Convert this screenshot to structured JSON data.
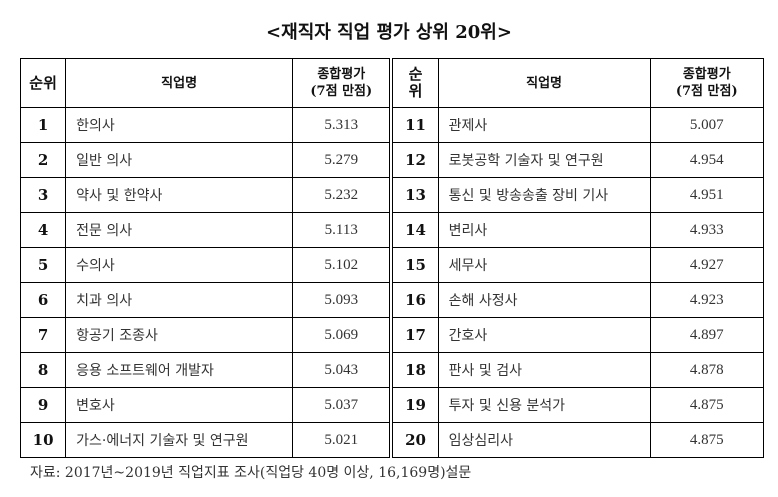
{
  "title": "<재직자 직업 평가 상위 20위>",
  "headers": {
    "rank": "순위",
    "rank_short": "순\n위",
    "job": "직업명",
    "score_line1": "종합평가",
    "score_line2": "(7점 만점)"
  },
  "rows": [
    {
      "l": {
        "rank": "1",
        "job": "한의사",
        "score": "5.313"
      },
      "r": {
        "rank": "11",
        "job": "관제사",
        "score": "5.007"
      }
    },
    {
      "l": {
        "rank": "2",
        "job": "일반 의사",
        "score": "5.279"
      },
      "r": {
        "rank": "12",
        "job": "로봇공학 기술자 및 연구원",
        "score": "4.954"
      }
    },
    {
      "l": {
        "rank": "3",
        "job": "약사 및 한약사",
        "score": "5.232"
      },
      "r": {
        "rank": "13",
        "job": "통신 및 방송송출 장비 기사",
        "score": "4.951"
      }
    },
    {
      "l": {
        "rank": "4",
        "job": "전문 의사",
        "score": "5.113"
      },
      "r": {
        "rank": "14",
        "job": "변리사",
        "score": "4.933"
      }
    },
    {
      "l": {
        "rank": "5",
        "job": "수의사",
        "score": "5.102"
      },
      "r": {
        "rank": "15",
        "job": "세무사",
        "score": "4.927"
      }
    },
    {
      "l": {
        "rank": "6",
        "job": "치과 의사",
        "score": "5.093"
      },
      "r": {
        "rank": "16",
        "job": "손해 사정사",
        "score": "4.923"
      }
    },
    {
      "l": {
        "rank": "7",
        "job": "항공기 조종사",
        "score": "5.069"
      },
      "r": {
        "rank": "17",
        "job": "간호사",
        "score": "4.897"
      }
    },
    {
      "l": {
        "rank": "8",
        "job": "응용 소프트웨어 개발자",
        "score": "5.043"
      },
      "r": {
        "rank": "18",
        "job": "판사 및 검사",
        "score": "4.878"
      }
    },
    {
      "l": {
        "rank": "9",
        "job": "변호사",
        "score": "5.037"
      },
      "r": {
        "rank": "19",
        "job": "투자 및 신용 분석가",
        "score": "4.875"
      }
    },
    {
      "l": {
        "rank": "10",
        "job": "가스·에너지 기술자 및 연구원",
        "score": "5.021"
      },
      "r": {
        "rank": "20",
        "job": "임상심리사",
        "score": "4.875"
      }
    }
  ],
  "note": "자료: 2017년~2019년 직업지표 조사(직업당 40명 이상, 16,169명)설문"
}
